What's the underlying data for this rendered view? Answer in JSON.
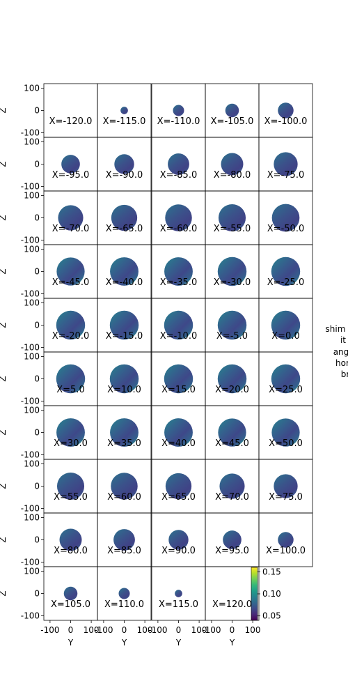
{
  "chart_data": {
    "type": "heatmap",
    "layout": {
      "rows": 10,
      "cols": 5
    },
    "panels": [
      "X=-120.0",
      "X=-115.0",
      "X=-110.0",
      "X=-105.0",
      "X=-100.0",
      "X=-95.0",
      "X=-90.0",
      "X=-85.0",
      "X=-80.0",
      "X=-75.0",
      "X=-70.0",
      "X=-65.0",
      "X=-60.0",
      "X=-55.0",
      "X=-50.0",
      "X=-45.0",
      "X=-40.0",
      "X=-35.0",
      "X=-30.0",
      "X=-25.0",
      "X=-20.0",
      "X=-15.0",
      "X=-10.0",
      "X=-5.0",
      "X=0.0",
      "X=5.0",
      "X=10.0",
      "X=15.0",
      "X=20.0",
      "X=25.0",
      "X=30.0",
      "X=35.0",
      "X=40.0",
      "X=45.0",
      "X=50.0",
      "X=55.0",
      "X=60.0",
      "X=65.0",
      "X=70.0",
      "X=75.0",
      "X=80.0",
      "X=85.0",
      "X=90.0",
      "X=95.0",
      "X=100.0",
      "X=105.0",
      "X=110.0",
      "X=115.0",
      "X=120.0"
    ],
    "disk_radius_data_units": [
      0,
      18,
      27,
      33,
      38,
      45,
      48,
      52,
      54,
      58,
      61,
      63,
      65,
      66,
      67,
      68,
      69,
      69,
      70,
      70,
      70,
      70,
      70,
      70,
      70,
      70,
      70,
      70,
      70,
      70,
      69,
      69,
      69,
      68,
      68,
      66,
      65,
      63,
      61,
      58,
      54,
      52,
      48,
      45,
      38,
      33,
      27,
      18,
      0
    ],
    "xlabel": "Y",
    "ylabel": "Z",
    "xlim": [
      -130,
      130
    ],
    "ylim": [
      -120,
      120
    ],
    "x_ticks": [
      "-100",
      "0",
      "100"
    ],
    "y_ticks": [
      "100",
      "0",
      "-100"
    ],
    "colorbar": {
      "colormap": "viridis",
      "range": [
        0.04,
        0.16
      ],
      "ticks": [
        "0.15",
        "0.10",
        "0.05"
      ]
    },
    "side_text": [
      "shim",
      "it",
      "ang",
      "hor",
      "br"
    ]
  },
  "colors": {
    "viridis": [
      "#440154",
      "#482878",
      "#3e4989",
      "#31688e",
      "#26828e",
      "#1f9e89",
      "#35b779",
      "#6ece58",
      "#b5de2b",
      "#fde725"
    ]
  }
}
